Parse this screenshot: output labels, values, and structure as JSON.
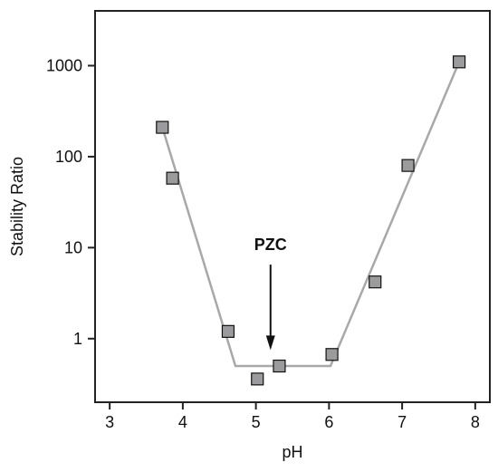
{
  "chart_data": {
    "type": "scatter",
    "xlabel": "pH",
    "ylabel": "Stability Ratio",
    "xlim": [
      2.8,
      8.2
    ],
    "ylim": [
      0.2,
      4000
    ],
    "yscale": "log",
    "xticks": [
      3,
      4,
      5,
      6,
      7,
      8
    ],
    "xtick_labels": [
      "3",
      "4",
      "5",
      "6",
      "7",
      "8"
    ],
    "yticks": [
      1,
      10,
      100,
      1000
    ],
    "ytick_labels": [
      "1",
      "10",
      "100",
      "1000"
    ],
    "grid": false,
    "series": [
      {
        "points": [
          {
            "x": 3.72,
            "y": 210
          },
          {
            "x": 3.86,
            "y": 58
          },
          {
            "x": 4.62,
            "y": 1.2
          },
          {
            "x": 5.02,
            "y": 0.36
          },
          {
            "x": 5.32,
            "y": 0.5
          },
          {
            "x": 6.04,
            "y": 0.67
          },
          {
            "x": 6.63,
            "y": 4.2
          },
          {
            "x": 7.08,
            "y": 80
          },
          {
            "x": 7.78,
            "y": 1100
          }
        ],
        "marker": "square",
        "marker_color": "#9b9b9e"
      }
    ],
    "fit_line": {
      "points": [
        {
          "x": 3.72,
          "y": 210
        },
        {
          "x": 4.72,
          "y": 0.5
        },
        {
          "x": 6.02,
          "y": 0.5
        },
        {
          "x": 7.8,
          "y": 1200
        }
      ],
      "color": "#a8a8a8"
    },
    "annotations": [
      {
        "text": "PZC",
        "x": 5.2,
        "y_from": 6.5,
        "y_to": 0.75,
        "arrow": "down"
      }
    ]
  }
}
